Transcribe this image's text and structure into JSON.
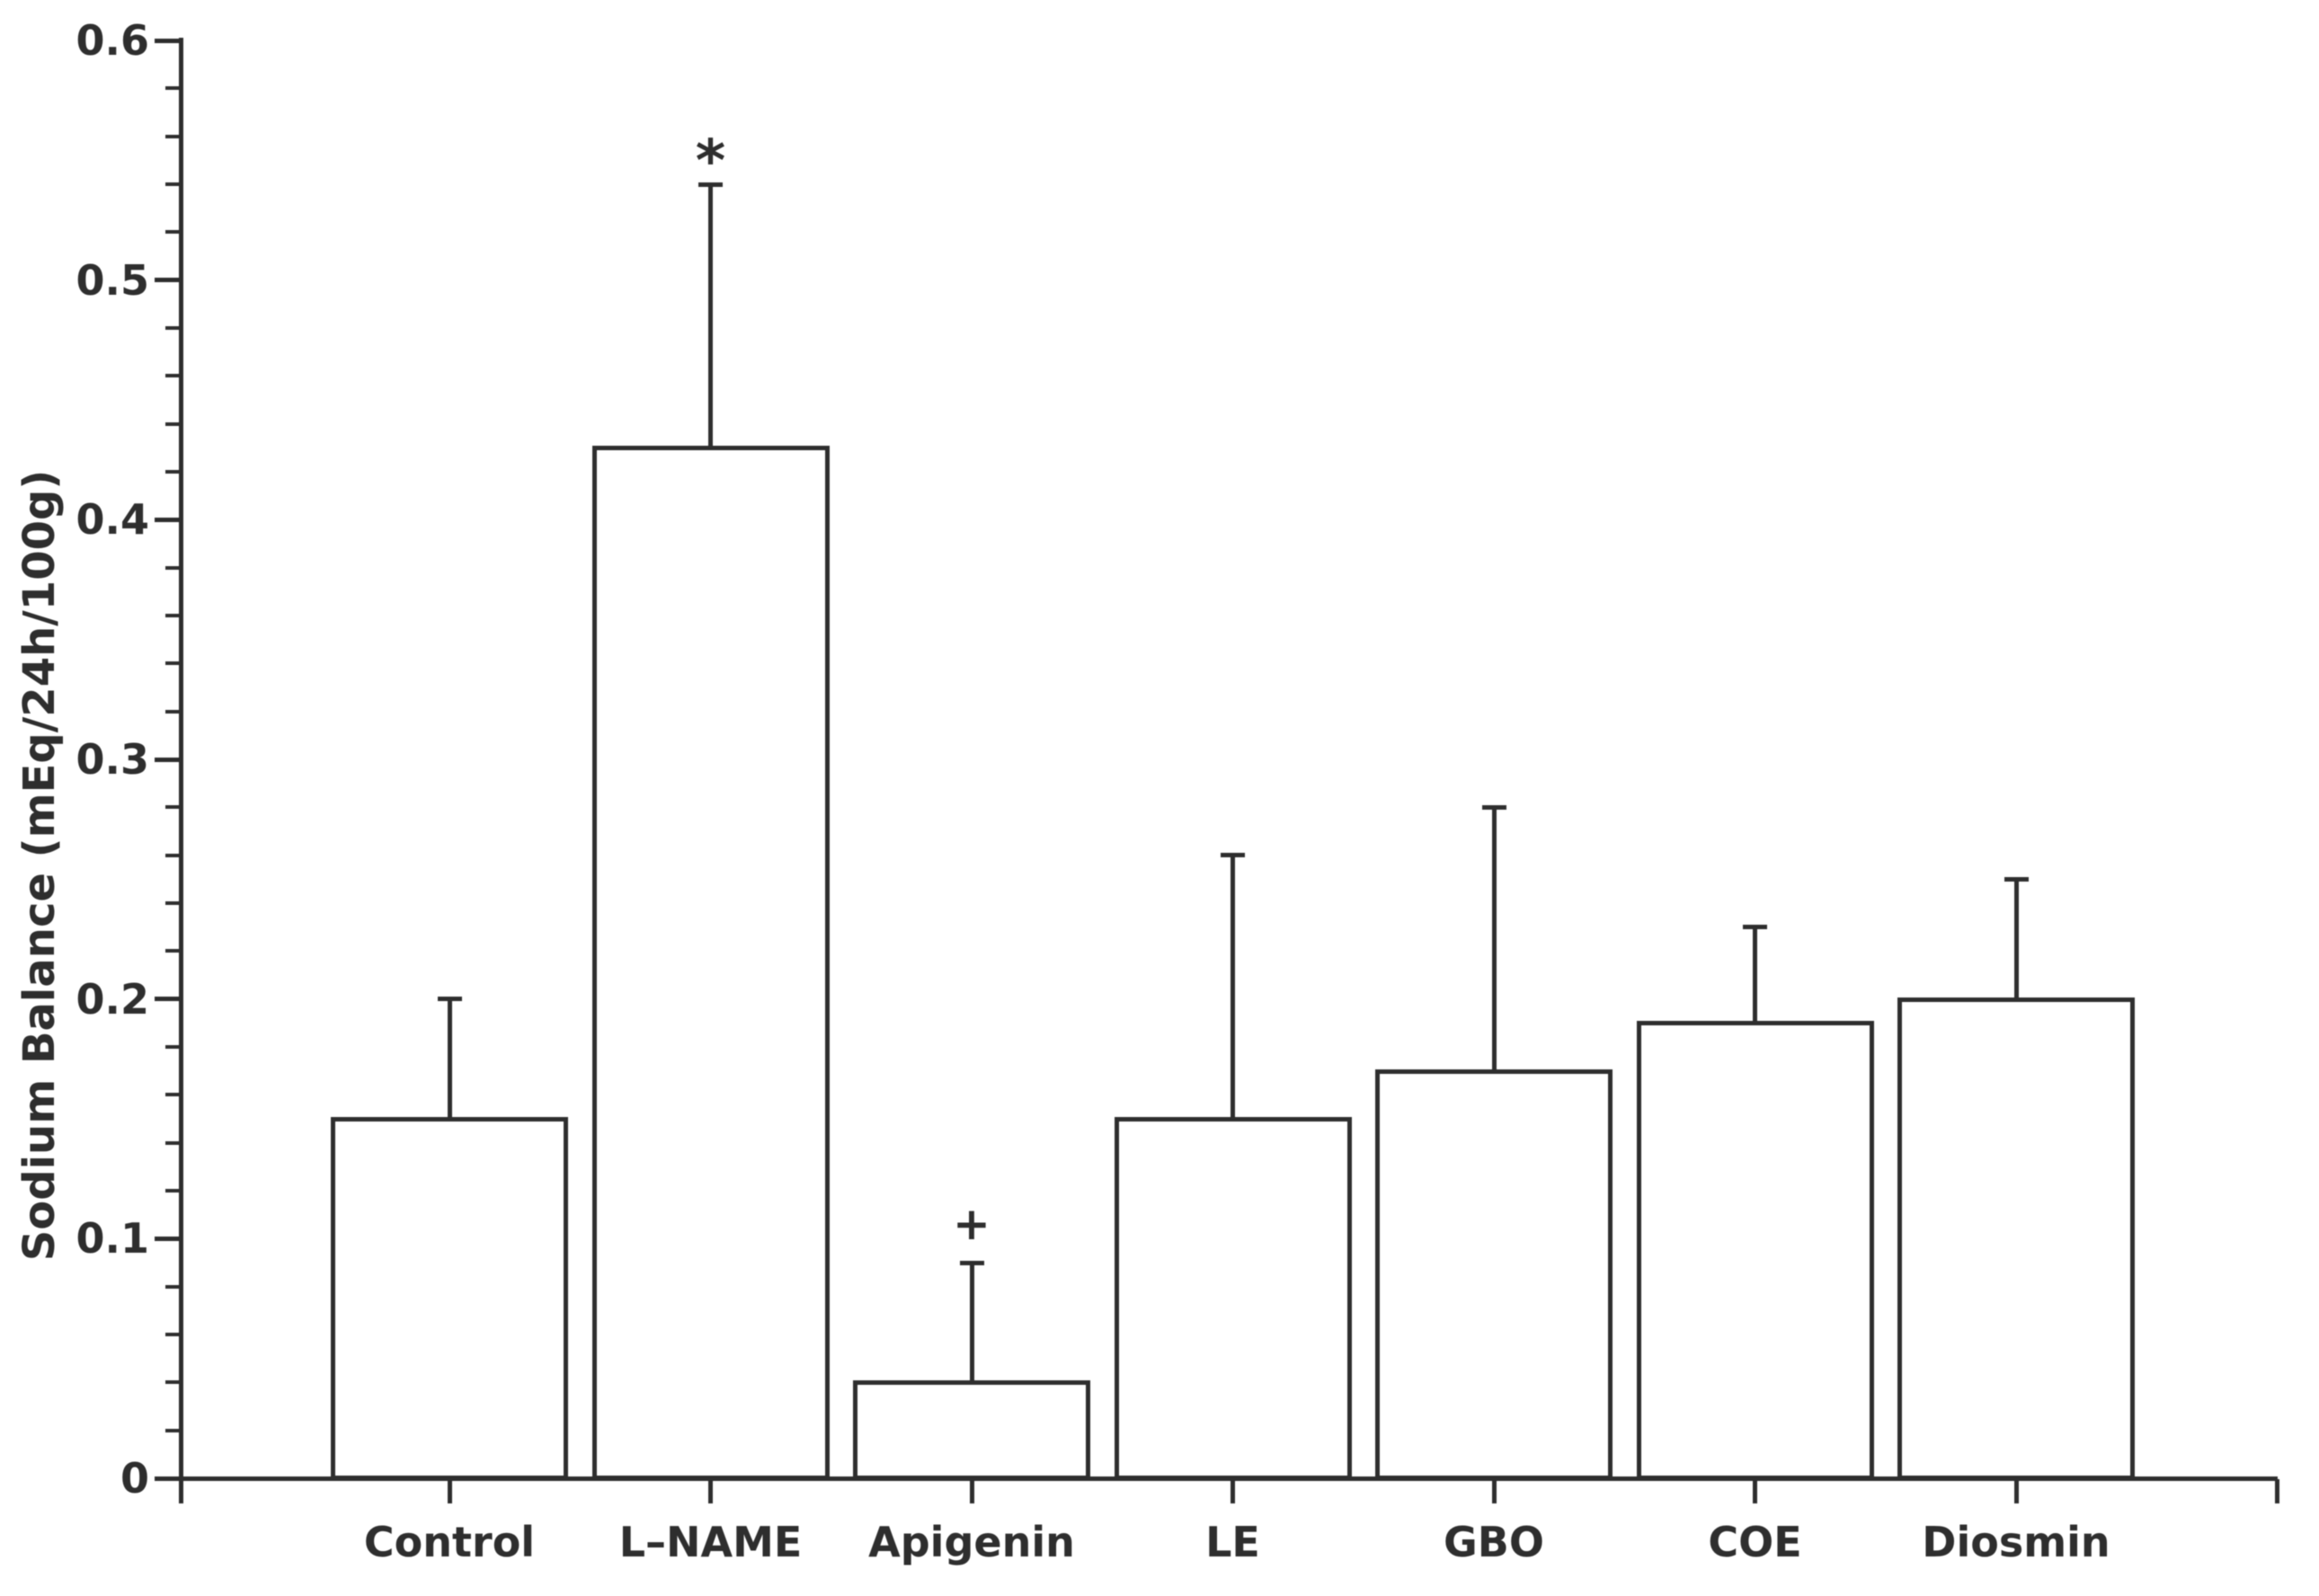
{
  "figure": {
    "background": "#ffffff",
    "ink_color": "#2e2e2e"
  },
  "chart_data": {
    "type": "bar",
    "title": "",
    "xlabel": "",
    "ylabel": "Sodium Balance (mEq/24h/100g)",
    "categories": [
      "Control",
      "L–NAME",
      "Apigenin",
      "LE",
      "GBO",
      "COE",
      "Diosmin"
    ],
    "values": [
      0.15,
      0.43,
      0.04,
      0.15,
      0.17,
      0.19,
      0.2
    ],
    "upper_errors": [
      0.05,
      0.11,
      0.05,
      0.11,
      0.11,
      0.04,
      0.05
    ],
    "error_bar_tops": [
      0.2,
      0.54,
      0.09,
      0.26,
      0.28,
      0.23,
      0.25
    ],
    "annotations": [
      "",
      "*",
      "+",
      "",
      "",
      "",
      ""
    ],
    "ylim": [
      0,
      0.6
    ],
    "y_major_step": 0.1,
    "y_minor_step": 0.02,
    "y_tick_labels": [
      "0",
      "0.1",
      "0.2",
      "0.3",
      "0.4",
      "0.5",
      "0.6"
    ],
    "bar_fill": "#ffffff",
    "bar_edge": "#2e2e2e",
    "grid": false,
    "legend": null
  }
}
